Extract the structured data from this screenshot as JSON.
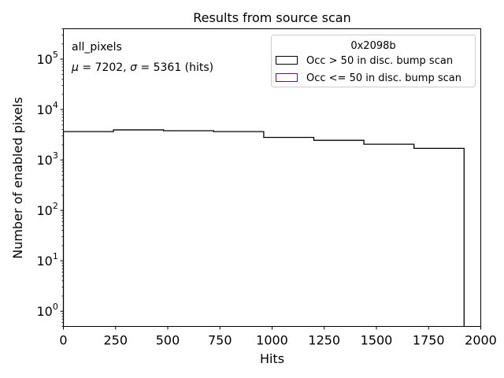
{
  "chart_data": {
    "type": "histogram",
    "title": "Results from source scan",
    "xlabel": "Hits",
    "ylabel": "Number of enabled pixels",
    "xlim": [
      0,
      2000
    ],
    "ylim": [
      0.5,
      400000
    ],
    "yscale": "log",
    "grid": false,
    "xticks": [
      0,
      250,
      500,
      750,
      1000,
      1250,
      1500,
      1750,
      2000
    ],
    "xtick_labels": [
      "0",
      "250",
      "500",
      "750",
      "1000",
      "1250",
      "1500",
      "1750",
      "2000"
    ],
    "yticks": [
      {
        "base": "10",
        "exp": "0",
        "value": 1
      },
      {
        "base": "10",
        "exp": "1",
        "value": 10
      },
      {
        "base": "10",
        "exp": "2",
        "value": 100
      },
      {
        "base": "10",
        "exp": "3",
        "value": 1000
      },
      {
        "base": "10",
        "exp": "4",
        "value": 10000
      },
      {
        "base": "10",
        "exp": "5",
        "value": 100000
      }
    ],
    "bin_edges": [
      0,
      240,
      480,
      720,
      960,
      1200,
      1440,
      1680,
      1920
    ],
    "series": [
      {
        "name": "Occ > 50 in disc. bump scan",
        "color": "#000000",
        "values": [
          3650,
          3950,
          3800,
          3650,
          2800,
          2450,
          2050,
          1700
        ]
      },
      {
        "name": "Occ <= 50 in disc. bump scan",
        "color": "#800080",
        "values": [
          0,
          0,
          0,
          0,
          0,
          0,
          0,
          0
        ]
      }
    ],
    "legend": {
      "title": "0x2098b",
      "position": "top-right"
    },
    "annotations": {
      "label": "all_pixels",
      "mu_symbol": "μ",
      "sigma_symbol": "σ",
      "mu_value": " = 7202, ",
      "sigma_value": " = 5361 (hits)"
    }
  }
}
